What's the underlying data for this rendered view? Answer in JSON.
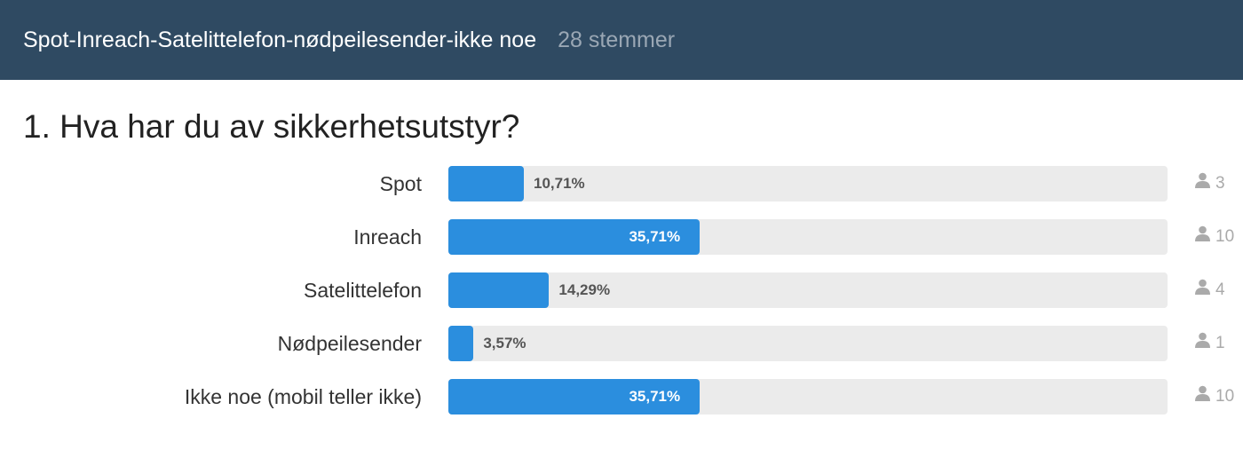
{
  "header": {
    "title": "Spot-Inreach-Satelittelefon-nødpeilesender-ikke noe",
    "votes": "28 stemmer"
  },
  "question": "1. Hva har du av sikkerhetsutstyr?",
  "colors": {
    "header": "#2f4a62",
    "bar": "#2b8ede",
    "track": "#ebebeb"
  },
  "chart_data": {
    "type": "bar",
    "orientation": "horizontal",
    "title": "1. Hva har du av sikkerhetsutstyr?",
    "categories": [
      "Spot",
      "Inreach",
      "Satelittelefon",
      "Nødpeilesender",
      "Ikke noe (mobil teller ikke)"
    ],
    "values": [
      10.71,
      35.71,
      14.29,
      3.57,
      35.71
    ],
    "value_labels": [
      "10,71%",
      "35,71%",
      "14,29%",
      "3,57%",
      "35,71%"
    ],
    "counts": [
      "3",
      "10",
      "4",
      "1",
      "10"
    ],
    "xlim": [
      0,
      100
    ]
  }
}
